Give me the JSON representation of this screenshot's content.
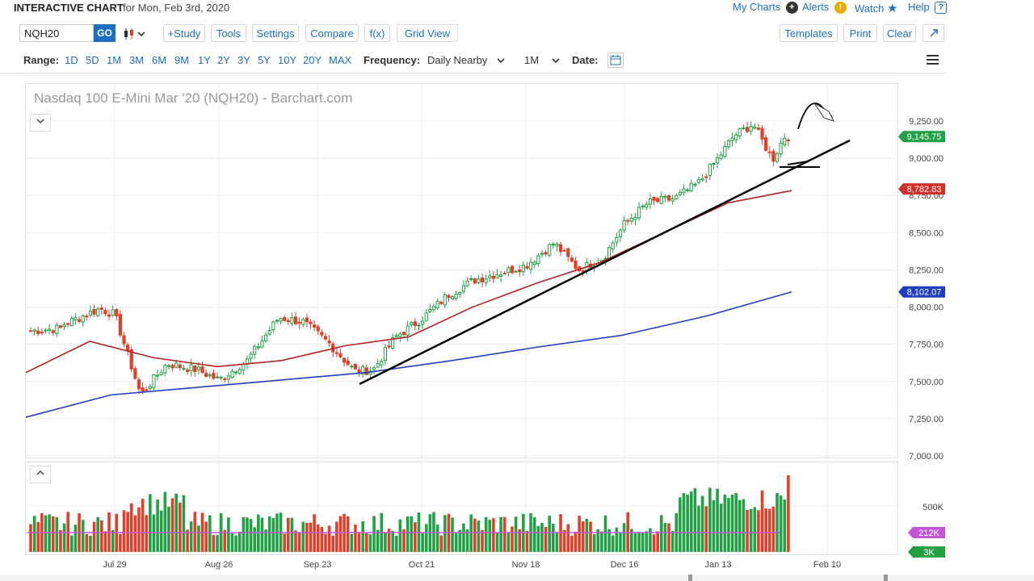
{
  "header": {
    "title": "INTERACTIVE CHART",
    "date_text": "for Mon, Feb 3rd, 2020",
    "links": {
      "my_charts": "My Charts",
      "alerts": "Alerts",
      "watch": "Watch",
      "help": "Help"
    }
  },
  "toolbar": {
    "symbol_value": "NQH20",
    "go_label": "GO",
    "study_label": "+Study",
    "tools_label": "Tools",
    "settings_label": "Settings",
    "compare_label": "Compare",
    "fx_label": "f(x)",
    "grid_view_label": "Grid View",
    "templates_label": "Templates",
    "print_label": "Print",
    "clear_label": "Clear"
  },
  "rangebar": {
    "range_label": "Range:",
    "ranges": [
      "1D",
      "5D",
      "1M",
      "3M",
      "6M",
      "9M",
      "1Y",
      "2Y",
      "3Y",
      "5Y",
      "10Y",
      "20Y",
      "MAX"
    ],
    "frequency_label": "Frequency:",
    "frequency_value": "Daily Nearby",
    "period_value": "1M",
    "date_label": "Date:"
  },
  "chart": {
    "title": "Nasdaq 100 E-Mini Mar '20 (NQH20) - Barchart.com",
    "price_ticks": [
      "9,250.00",
      "9,000.00",
      "8,750.00",
      "8,500.00",
      "8,250.00",
      "8,000.00",
      "7,750.00",
      "7,500.00",
      "7,250.00",
      "7,000.00"
    ],
    "x_ticks": [
      "Jul 29",
      "Aug 26",
      "Sep 23",
      "Oct 21",
      "Nov 18",
      "Dec 16",
      "Jan 13",
      "Feb 10"
    ],
    "volume_tick": "500K",
    "badges": {
      "last_price": "9,145.75",
      "ma50": "8,782.83",
      "ma200": "8,102.07",
      "volume_avg": "212K",
      "volume_last": "3K"
    },
    "colors": {
      "up": "#21a145",
      "down": "#e0402a",
      "ma50": "#b22222",
      "ma200": "#1f3fbf",
      "volume_avg": "#c454d8"
    }
  },
  "chart_data": {
    "type": "candlestick",
    "title": "Nasdaq 100 E-Mini Mar '20 (NQH20) - Barchart.com",
    "xlabel": "",
    "ylabel": "",
    "ylim": [
      7000,
      9400
    ],
    "x_ticks": [
      "Jul 29",
      "Aug 26",
      "Sep 23",
      "Oct 21",
      "Nov 18",
      "Dec 16",
      "Jan 13",
      "Feb 10"
    ],
    "close_anchors": [
      {
        "date": "Jul 15",
        "close": 7880
      },
      {
        "date": "Jul 25",
        "close": 7990
      },
      {
        "date": "Jul 29",
        "close": 7950
      },
      {
        "date": "Aug 5",
        "close": 7410
      },
      {
        "date": "Aug 12",
        "close": 7620
      },
      {
        "date": "Aug 20",
        "close": 7580
      },
      {
        "date": "Aug 26",
        "close": 7510
      },
      {
        "date": "Sep 3",
        "close": 7640
      },
      {
        "date": "Sep 12",
        "close": 7930
      },
      {
        "date": "Sep 19",
        "close": 7900
      },
      {
        "date": "Sep 26",
        "close": 7760
      },
      {
        "date": "Oct 3",
        "close": 7570
      },
      {
        "date": "Oct 8",
        "close": 7580
      },
      {
        "date": "Oct 14",
        "close": 7800
      },
      {
        "date": "Oct 21",
        "close": 7920
      },
      {
        "date": "Oct 28",
        "close": 8080
      },
      {
        "date": "Nov 4",
        "close": 8180
      },
      {
        "date": "Nov 18",
        "close": 8280
      },
      {
        "date": "Nov 26",
        "close": 8430
      },
      {
        "date": "Dec 3",
        "close": 8250
      },
      {
        "date": "Dec 10",
        "close": 8330
      },
      {
        "date": "Dec 16",
        "close": 8560
      },
      {
        "date": "Dec 23",
        "close": 8700
      },
      {
        "date": "Dec 31",
        "close": 8730
      },
      {
        "date": "Jan 7",
        "close": 8830
      },
      {
        "date": "Jan 13",
        "close": 9000
      },
      {
        "date": "Jan 17",
        "close": 9150
      },
      {
        "date": "Jan 22",
        "close": 9230
      },
      {
        "date": "Jan 27",
        "close": 8990
      },
      {
        "date": "Jan 30",
        "close": 9145.75
      }
    ],
    "series": [
      {
        "name": "50-day MA",
        "values": [
          7560,
          7770,
          7660,
          7600,
          7640,
          7740,
          7800,
          8000,
          8160,
          8300,
          8500,
          8700,
          8782.83
        ]
      },
      {
        "name": "200-day MA",
        "values": [
          7260,
          7410,
          7460,
          7510,
          7560,
          7640,
          7730,
          7810,
          7940,
          8102.07
        ]
      }
    ],
    "volume": {
      "ylim": [
        0,
        1000000
      ],
      "avg": 212000,
      "last": 3000
    }
  }
}
